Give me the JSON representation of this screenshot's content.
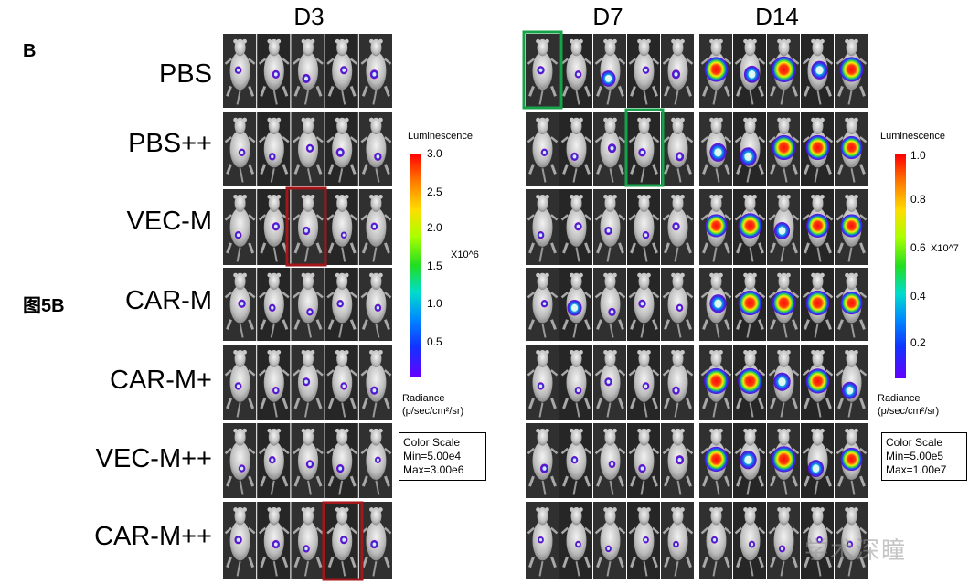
{
  "panel_letter": "B",
  "figure_label": "图5B",
  "columns": [
    "D3",
    "D7",
    "D14"
  ],
  "rows": [
    "PBS",
    "PBS++",
    "VEC-M",
    "CAR-M",
    "CAR-M+",
    "VEC-M++",
    "CAR-M++"
  ],
  "legend_left": {
    "title": "Luminescence",
    "ticks": [
      "3.0",
      "2.5",
      "2.0",
      "1.5",
      "1.0",
      "0.5"
    ],
    "multiplier": "X10^6",
    "radiance": "Radiance",
    "radiance_units": "(p/sec/cm²/sr)",
    "color_scale": "Color Scale",
    "min": "Min=5.00e4",
    "max": "Max=3.00e6"
  },
  "legend_right": {
    "title": "Luminescence",
    "ticks": [
      "1.0",
      "0.8",
      "0.6",
      "0.4",
      "0.2"
    ],
    "multiplier": "X10^7",
    "radiance": "Radiance",
    "radiance_units": "(p/sec/cm²/sr)",
    "color_scale": "Color Scale",
    "min": "Min=5.00e5",
    "max": "Max=1.00e7"
  },
  "watermark": "学术深瞳",
  "highlight_colors": {
    "red": "#a3161a",
    "green": "#17a14a"
  },
  "signal_intensity": {
    "D3": [
      [
        0.2,
        0.3,
        0.4,
        0.3,
        0.4
      ],
      [
        0.2,
        0.2,
        0.3,
        0.4,
        0.3
      ],
      [
        0.2,
        0.3,
        0.3,
        0.1,
        0.2
      ],
      [
        0.3,
        0.2,
        0.2,
        0.2,
        0.2
      ],
      [
        0.2,
        0.2,
        0.3,
        0.2,
        0.3
      ],
      [
        0.2,
        0.2,
        0.3,
        0.3,
        0.1
      ],
      [
        0.3,
        0.3,
        0.2,
        0.3,
        0.3
      ]
    ],
    "D7": [
      [
        0.3,
        0.2,
        0.5,
        0.2,
        0.4
      ],
      [
        0.2,
        0.3,
        0.4,
        0.3,
        0.4
      ],
      [
        0.2,
        0.3,
        0.3,
        0.2,
        0.3
      ],
      [
        0.2,
        0.5,
        0.3,
        0.3,
        0.2
      ],
      [
        0.2,
        0.2,
        0.3,
        0.2,
        0.3
      ],
      [
        0.4,
        0.2,
        0.2,
        0.3,
        0.4
      ],
      [
        0.1,
        0.1,
        0.1,
        0.1,
        0.1
      ]
    ],
    "D14": [
      [
        0.9,
        0.6,
        0.95,
        0.7,
        0.9
      ],
      [
        0.7,
        0.7,
        0.9,
        0.9,
        0.8
      ],
      [
        0.8,
        0.9,
        0.6,
        0.85,
        0.8
      ],
      [
        0.7,
        0.9,
        0.9,
        0.9,
        0.8
      ],
      [
        0.95,
        0.95,
        0.7,
        0.9,
        0.6
      ],
      [
        0.9,
        0.7,
        0.95,
        0.6,
        0.8
      ],
      [
        0.15,
        0.15,
        0.15,
        0.1,
        0.15
      ]
    ]
  }
}
